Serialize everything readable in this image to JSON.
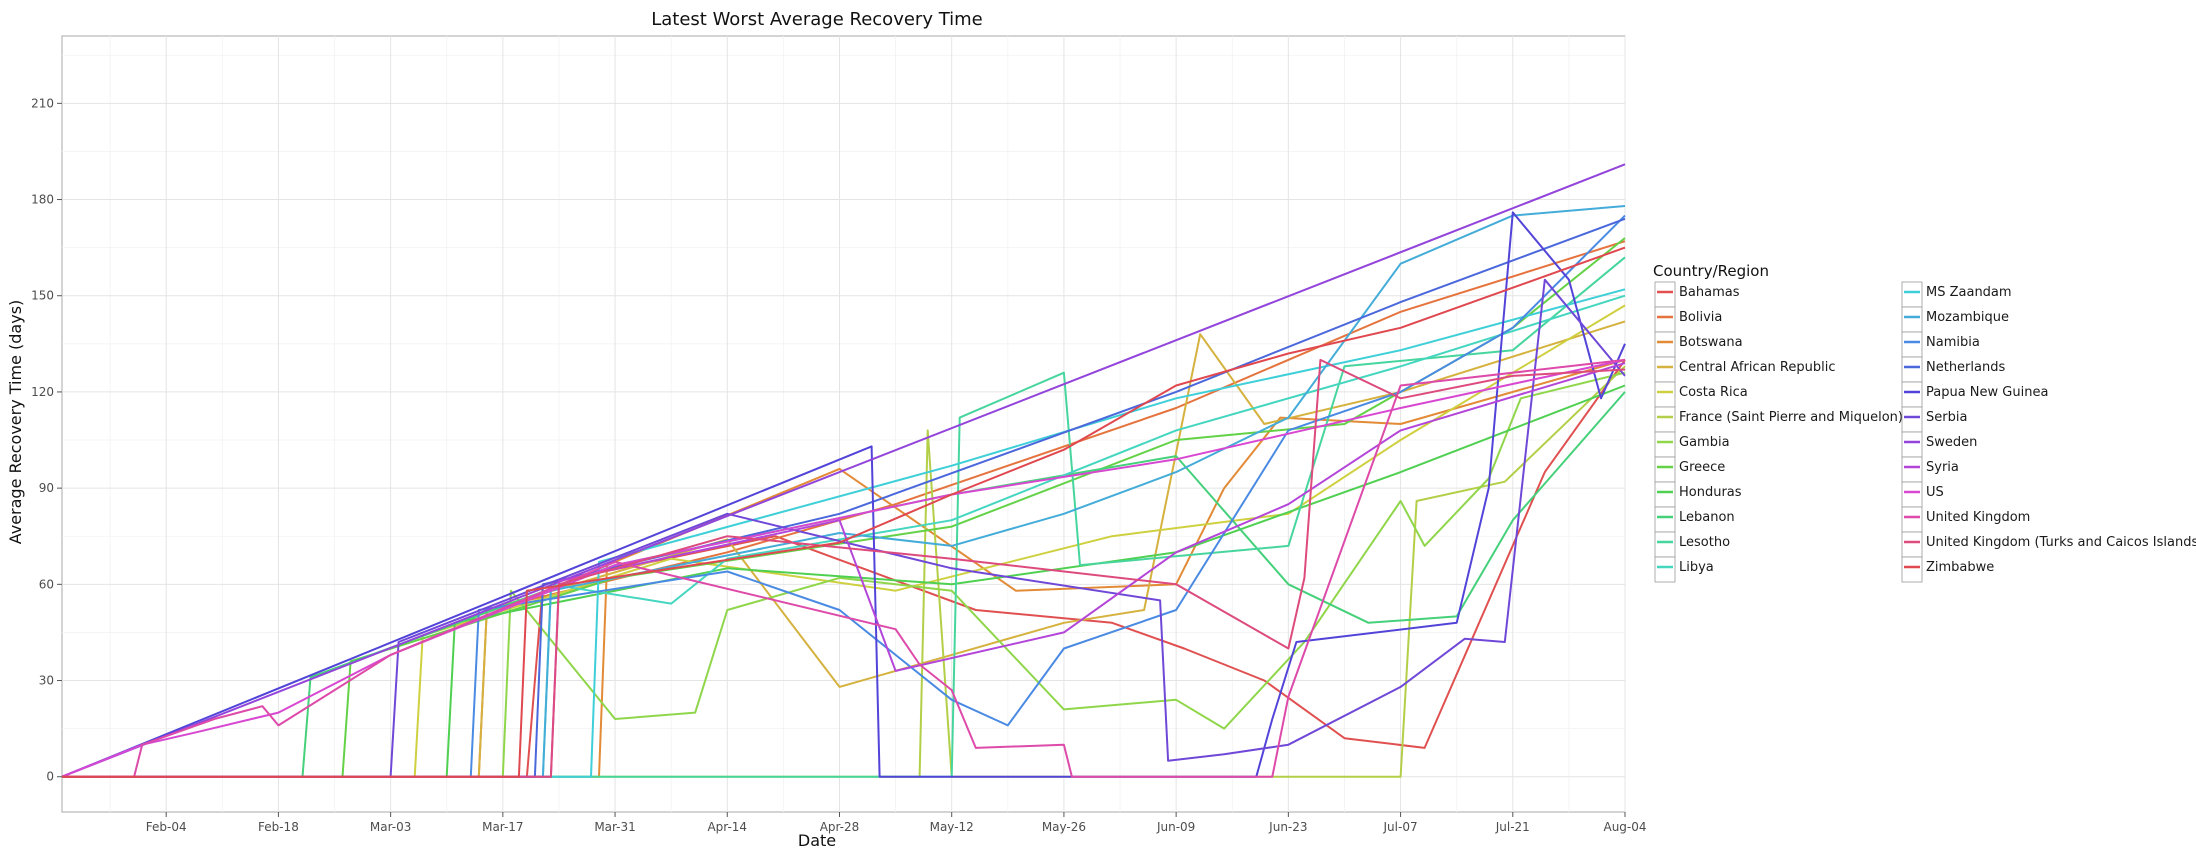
{
  "chart_data": {
    "type": "line",
    "title": "Latest Worst Average Recovery Time",
    "xlabel": "Date",
    "ylabel": "Average Recovery Time (days)",
    "x_ticks": [
      "Feb-04",
      "Feb-18",
      "Mar-03",
      "Mar-17",
      "Mar-31",
      "Apr-14",
      "Apr-28",
      "May-12",
      "May-26",
      "Jun-09",
      "Jun-23",
      "Jul-07",
      "Jul-21",
      "Aug-04"
    ],
    "x_tick_positions": [
      "2020-02-04",
      "2020-02-18",
      "2020-03-03",
      "2020-03-17",
      "2020-03-31",
      "2020-04-14",
      "2020-04-28",
      "2020-05-12",
      "2020-05-26",
      "2020-06-09",
      "2020-06-23",
      "2020-07-07",
      "2020-07-21",
      "2020-08-04"
    ],
    "xlim": [
      "2020-01-22",
      "2020-08-04"
    ],
    "ylim": [
      -11,
      231
    ],
    "y_ticks": [
      0,
      30,
      60,
      90,
      120,
      150,
      180,
      210
    ],
    "grid": true,
    "legend": {
      "title": "Country/Region",
      "placement": "right"
    },
    "series": [
      {
        "name": "Bahamas",
        "color": "#e05050",
        "points": [
          [
            "2020-01-22",
            0
          ],
          [
            "2020-03-20",
            0
          ],
          [
            "2020-03-22",
            60
          ],
          [
            "2020-04-20",
            75
          ],
          [
            "2020-05-15",
            52
          ],
          [
            "2020-06-01",
            48
          ],
          [
            "2020-06-10",
            40
          ],
          [
            "2020-06-20",
            30
          ],
          [
            "2020-06-30",
            12
          ],
          [
            "2020-07-10",
            9
          ],
          [
            "2020-07-25",
            95
          ],
          [
            "2020-08-04",
            130
          ]
        ]
      },
      {
        "name": "Bolivia",
        "color": "#e5733e",
        "points": [
          [
            "2020-01-22",
            0
          ],
          [
            "2020-03-14",
            0
          ],
          [
            "2020-03-15",
            52
          ],
          [
            "2020-04-14",
            70
          ],
          [
            "2020-05-05",
            85
          ],
          [
            "2020-06-09",
            115
          ],
          [
            "2020-07-07",
            145
          ],
          [
            "2020-08-04",
            167
          ]
        ]
      },
      {
        "name": "Botswana",
        "color": "#e28a36",
        "points": [
          [
            "2020-01-22",
            0
          ],
          [
            "2020-03-29",
            0
          ],
          [
            "2020-03-30",
            66
          ],
          [
            "2020-04-28",
            96
          ],
          [
            "2020-05-20",
            58
          ],
          [
            "2020-06-09",
            60
          ],
          [
            "2020-06-15",
            90
          ],
          [
            "2020-06-22",
            112
          ],
          [
            "2020-07-07",
            110
          ],
          [
            "2020-08-04",
            130
          ]
        ]
      },
      {
        "name": "Central African Republic",
        "color": "#d5b13e",
        "points": [
          [
            "2020-01-22",
            0
          ],
          [
            "2020-03-14",
            0
          ],
          [
            "2020-03-15",
            52
          ],
          [
            "2020-04-14",
            74
          ],
          [
            "2020-04-28",
            28
          ],
          [
            "2020-05-12",
            38
          ],
          [
            "2020-05-26",
            48
          ],
          [
            "2020-06-05",
            52
          ],
          [
            "2020-06-12",
            138
          ],
          [
            "2020-06-20",
            110
          ],
          [
            "2020-07-07",
            120
          ],
          [
            "2020-08-04",
            142
          ]
        ]
      },
      {
        "name": "Costa Rica",
        "color": "#cfd040",
        "points": [
          [
            "2020-01-22",
            0
          ],
          [
            "2020-03-06",
            0
          ],
          [
            "2020-03-07",
            44
          ],
          [
            "2020-04-07",
            68
          ],
          [
            "2020-05-05",
            58
          ],
          [
            "2020-06-01",
            75
          ],
          [
            "2020-06-23",
            82
          ],
          [
            "2020-07-07",
            105
          ],
          [
            "2020-08-04",
            147
          ]
        ]
      },
      {
        "name": "France (Saint Pierre and Miquelon)",
        "color": "#b3cf47",
        "points": [
          [
            "2020-01-22",
            0
          ],
          [
            "2020-05-08",
            0
          ],
          [
            "2020-05-09",
            108
          ],
          [
            "2020-05-12",
            0
          ],
          [
            "2020-07-07",
            0
          ],
          [
            "2020-07-09",
            86
          ],
          [
            "2020-07-20",
            92
          ],
          [
            "2020-08-04",
            128
          ]
        ]
      },
      {
        "name": "Gambia",
        "color": "#8fd64a",
        "points": [
          [
            "2020-01-22",
            0
          ],
          [
            "2020-03-17",
            0
          ],
          [
            "2020-03-18",
            58
          ],
          [
            "2020-03-31",
            18
          ],
          [
            "2020-04-10",
            20
          ],
          [
            "2020-04-14",
            52
          ],
          [
            "2020-04-28",
            62
          ],
          [
            "2020-05-12",
            58
          ],
          [
            "2020-05-26",
            21
          ],
          [
            "2020-06-09",
            24
          ],
          [
            "2020-06-15",
            15
          ],
          [
            "2020-06-25",
            42
          ],
          [
            "2020-07-07",
            86
          ],
          [
            "2020-07-10",
            72
          ],
          [
            "2020-07-18",
            93
          ],
          [
            "2020-07-22",
            118
          ],
          [
            "2020-08-04",
            126
          ]
        ]
      },
      {
        "name": "Greece",
        "color": "#63d247",
        "points": [
          [
            "2020-01-22",
            0
          ],
          [
            "2020-02-26",
            0
          ],
          [
            "2020-02-27",
            36
          ],
          [
            "2020-03-31",
            62
          ],
          [
            "2020-05-12",
            78
          ],
          [
            "2020-06-09",
            105
          ],
          [
            "2020-06-30",
            110
          ],
          [
            "2020-07-21",
            140
          ],
          [
            "2020-08-04",
            168
          ]
        ]
      },
      {
        "name": "Honduras",
        "color": "#4fd051",
        "points": [
          [
            "2020-01-22",
            0
          ],
          [
            "2020-03-10",
            0
          ],
          [
            "2020-03-11",
            48
          ],
          [
            "2020-04-14",
            65
          ],
          [
            "2020-05-12",
            60
          ],
          [
            "2020-06-09",
            70
          ],
          [
            "2020-07-07",
            95
          ],
          [
            "2020-08-04",
            122
          ]
        ]
      },
      {
        "name": "Lebanon",
        "color": "#45d07a",
        "points": [
          [
            "2020-01-22",
            0
          ],
          [
            "2020-02-21",
            0
          ],
          [
            "2020-02-22",
            31
          ],
          [
            "2020-03-31",
            66
          ],
          [
            "2020-05-12",
            88
          ],
          [
            "2020-06-09",
            100
          ],
          [
            "2020-06-23",
            60
          ],
          [
            "2020-07-03",
            48
          ],
          [
            "2020-07-14",
            50
          ],
          [
            "2020-07-21",
            80
          ],
          [
            "2020-08-04",
            120
          ]
        ]
      },
      {
        "name": "Lesotho",
        "color": "#47d59e",
        "points": [
          [
            "2020-01-22",
            0
          ],
          [
            "2020-05-12",
            0
          ],
          [
            "2020-05-13",
            112
          ],
          [
            "2020-05-26",
            126
          ],
          [
            "2020-05-28",
            66
          ],
          [
            "2020-06-23",
            72
          ],
          [
            "2020-06-30",
            128
          ],
          [
            "2020-07-21",
            133
          ],
          [
            "2020-08-04",
            162
          ]
        ]
      },
      {
        "name": "Libya",
        "color": "#45d6c0",
        "points": [
          [
            "2020-01-22",
            0
          ],
          [
            "2020-03-22",
            0
          ],
          [
            "2020-03-23",
            60
          ],
          [
            "2020-04-07",
            54
          ],
          [
            "2020-04-14",
            68
          ],
          [
            "2020-05-12",
            80
          ],
          [
            "2020-06-09",
            108
          ],
          [
            "2020-07-07",
            128
          ],
          [
            "2020-08-04",
            150
          ]
        ]
      },
      {
        "name": "MS Zaandam",
        "color": "#3fcfd8",
        "points": [
          [
            "2020-01-22",
            0
          ],
          [
            "2020-03-28",
            0
          ],
          [
            "2020-03-29",
            67
          ],
          [
            "2020-05-12",
            97
          ],
          [
            "2020-06-09",
            118
          ],
          [
            "2020-07-07",
            133
          ],
          [
            "2020-08-04",
            152
          ]
        ]
      },
      {
        "name": "Mozambique",
        "color": "#44acd8",
        "points": [
          [
            "2020-01-22",
            0
          ],
          [
            "2020-03-22",
            0
          ],
          [
            "2020-03-23",
            58
          ],
          [
            "2020-04-28",
            76
          ],
          [
            "2020-05-12",
            72
          ],
          [
            "2020-05-26",
            82
          ],
          [
            "2020-06-09",
            95
          ],
          [
            "2020-06-23",
            112
          ],
          [
            "2020-07-07",
            160
          ],
          [
            "2020-07-21",
            175
          ],
          [
            "2020-08-04",
            178
          ]
        ]
      },
      {
        "name": "Namibia",
        "color": "#4a8ae3",
        "points": [
          [
            "2020-01-22",
            0
          ],
          [
            "2020-03-13",
            0
          ],
          [
            "2020-03-14",
            52
          ],
          [
            "2020-04-14",
            64
          ],
          [
            "2020-04-28",
            52
          ],
          [
            "2020-05-12",
            24
          ],
          [
            "2020-05-19",
            16
          ],
          [
            "2020-05-26",
            40
          ],
          [
            "2020-06-09",
            52
          ],
          [
            "2020-06-23",
            108
          ],
          [
            "2020-07-07",
            120
          ],
          [
            "2020-07-21",
            140
          ],
          [
            "2020-08-04",
            175
          ]
        ]
      },
      {
        "name": "Netherlands",
        "color": "#4a67dc",
        "points": [
          [
            "2020-01-22",
            0
          ],
          [
            "2020-03-21",
            0
          ],
          [
            "2020-03-22",
            60
          ],
          [
            "2020-04-28",
            82
          ],
          [
            "2020-06-09",
            120
          ],
          [
            "2020-07-07",
            148
          ],
          [
            "2020-08-04",
            174
          ]
        ]
      },
      {
        "name": "Papua New Guinea",
        "color": "#5244d8",
        "points": [
          [
            "2020-01-22",
            0
          ],
          [
            "2020-05-02",
            103
          ],
          [
            "2020-05-03",
            0
          ],
          [
            "2020-06-19",
            0
          ],
          [
            "2020-06-21",
            18
          ],
          [
            "2020-06-24",
            42
          ],
          [
            "2020-07-14",
            48
          ],
          [
            "2020-07-18",
            90
          ],
          [
            "2020-07-21",
            176
          ],
          [
            "2020-07-28",
            155
          ],
          [
            "2020-08-01",
            118
          ],
          [
            "2020-08-04",
            135
          ]
        ]
      },
      {
        "name": "Serbia",
        "color": "#7048d8",
        "points": [
          [
            "2020-01-22",
            0
          ],
          [
            "2020-03-03",
            0
          ],
          [
            "2020-03-04",
            42
          ],
          [
            "2020-04-14",
            82
          ],
          [
            "2020-05-12",
            65
          ],
          [
            "2020-06-07",
            55
          ],
          [
            "2020-06-08",
            5
          ],
          [
            "2020-06-15",
            7
          ],
          [
            "2020-06-23",
            10
          ],
          [
            "2020-07-07",
            28
          ],
          [
            "2020-07-15",
            43
          ],
          [
            "2020-07-20",
            42
          ],
          [
            "2020-07-25",
            155
          ],
          [
            "2020-08-04",
            125
          ]
        ]
      },
      {
        "name": "Sweden",
        "color": "#9244db",
        "points": [
          [
            "2020-01-22",
            0
          ],
          [
            "2020-08-04",
            191
          ]
        ]
      },
      {
        "name": "Syria",
        "color": "#b445d9",
        "points": [
          [
            "2020-01-22",
            0
          ],
          [
            "2020-03-23",
            0
          ],
          [
            "2020-03-24",
            61
          ],
          [
            "2020-04-28",
            80
          ],
          [
            "2020-05-05",
            33
          ],
          [
            "2020-05-26",
            45
          ],
          [
            "2020-06-09",
            70
          ],
          [
            "2020-06-23",
            85
          ],
          [
            "2020-07-07",
            108
          ],
          [
            "2020-08-04",
            129
          ]
        ]
      },
      {
        "name": "US",
        "color": "#d847d2",
        "points": [
          [
            "2020-01-22",
            0
          ],
          [
            "2020-02-01",
            10
          ],
          [
            "2020-02-08",
            14
          ],
          [
            "2020-02-18",
            20
          ],
          [
            "2020-03-03",
            38
          ],
          [
            "2020-03-31",
            66
          ],
          [
            "2020-05-12",
            88
          ],
          [
            "2020-06-09",
            99
          ],
          [
            "2020-07-07",
            115
          ],
          [
            "2020-08-04",
            130
          ]
        ]
      },
      {
        "name": "United Kingdom",
        "color": "#dd4aa9",
        "points": [
          [
            "2020-01-22",
            0
          ],
          [
            "2020-01-31",
            0
          ],
          [
            "2020-02-01",
            10
          ],
          [
            "2020-02-10",
            18
          ],
          [
            "2020-02-16",
            22
          ],
          [
            "2020-02-18",
            16
          ],
          [
            "2020-03-03",
            38
          ],
          [
            "2020-03-31",
            67
          ],
          [
            "2020-05-05",
            46
          ],
          [
            "2020-05-08",
            35
          ],
          [
            "2020-05-12",
            27
          ],
          [
            "2020-05-15",
            9
          ],
          [
            "2020-05-26",
            10
          ],
          [
            "2020-05-27",
            0
          ],
          [
            "2020-06-21",
            0
          ],
          [
            "2020-06-23",
            25
          ],
          [
            "2020-07-07",
            122
          ],
          [
            "2020-08-04",
            130
          ]
        ]
      },
      {
        "name": "United Kingdom (Turks and Caicos Islands)",
        "color": "#dd4a7d",
        "points": [
          [
            "2020-01-22",
            0
          ],
          [
            "2020-03-23",
            0
          ],
          [
            "2020-03-24",
            60
          ],
          [
            "2020-04-14",
            75
          ],
          [
            "2020-05-12",
            68
          ],
          [
            "2020-06-09",
            60
          ],
          [
            "2020-06-23",
            40
          ],
          [
            "2020-06-25",
            62
          ],
          [
            "2020-06-27",
            130
          ],
          [
            "2020-07-07",
            118
          ],
          [
            "2020-07-21",
            125
          ],
          [
            "2020-08-04",
            127
          ]
        ]
      },
      {
        "name": "Zimbabwe",
        "color": "#e0484f",
        "points": [
          [
            "2020-01-22",
            0
          ],
          [
            "2020-03-19",
            0
          ],
          [
            "2020-03-20",
            58
          ],
          [
            "2020-04-28",
            73
          ],
          [
            "2020-05-12",
            88
          ],
          [
            "2020-05-26",
            102
          ],
          [
            "2020-06-09",
            122
          ],
          [
            "2020-06-23",
            132
          ],
          [
            "2020-07-07",
            140
          ],
          [
            "2020-08-04",
            165
          ]
        ]
      }
    ]
  }
}
